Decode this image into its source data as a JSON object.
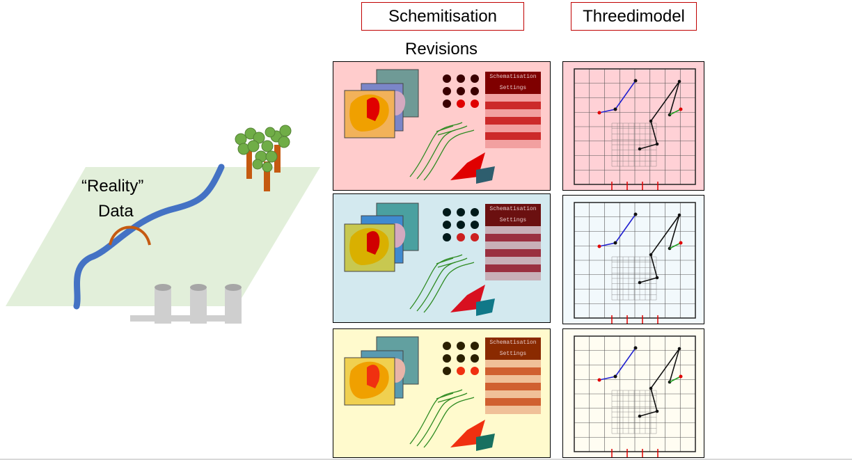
{
  "headers": {
    "schematisation": "Schemitisation",
    "threedimodel": "Threedimodel",
    "revisions": "Revisions"
  },
  "reality": {
    "line1": "“Reality”",
    "line2": "Data"
  },
  "revisions": [
    {
      "settings_line1": "Schematisation",
      "settings_line2": "Settings"
    },
    {
      "settings_line1": "Schematisation",
      "settings_line2": "Settings"
    },
    {
      "settings_line1": "Schematisation",
      "settings_line2": "Settings"
    }
  ],
  "colors": {
    "header_border": "#c00000",
    "rev1_bg": "#ffcccc",
    "rev2_bg": "#d3e9ef",
    "rev3_bg": "#fffacd",
    "model1_bg": "#ffd1d6",
    "model2_bg": "#f2f9fc",
    "model3_bg": "#fffdf2",
    "river": "#4472c4",
    "land": "#e2efda"
  }
}
